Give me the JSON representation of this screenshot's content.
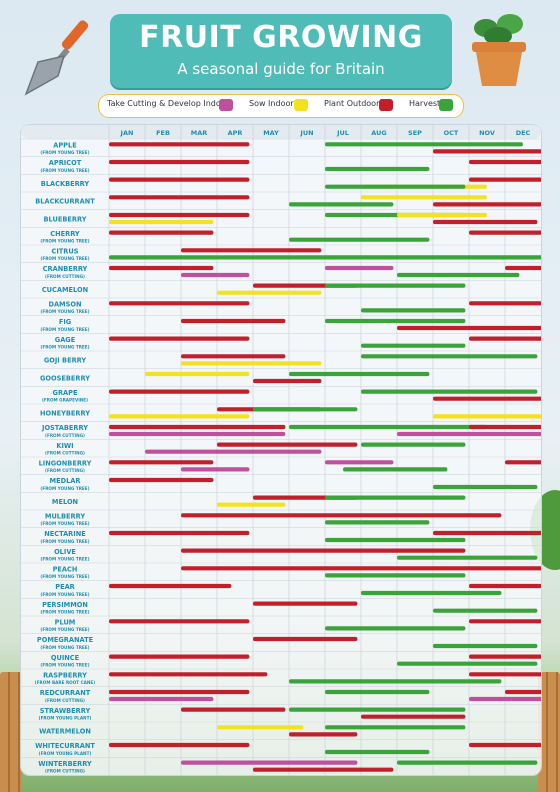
{
  "header": {
    "title": "FRUIT GROWING",
    "subtitle": "A seasonal guide for Britain"
  },
  "legend": [
    {
      "label": "Take Cutting & Develop Indoors",
      "color": "#c0509e"
    },
    {
      "label": "Sow Indoors",
      "color": "#f3e21f"
    },
    {
      "label": "Plant Outdoors",
      "color": "#c21f2a"
    },
    {
      "label": "Harvest",
      "color": "#3aa43a"
    }
  ],
  "chart_data": {
    "type": "table",
    "months": [
      "JAN",
      "FEB",
      "MAR",
      "APR",
      "MAY",
      "JUN",
      "JUL",
      "AUG",
      "SEP",
      "OCT",
      "NOV",
      "DEC"
    ],
    "colors": {
      "cutting": "#c0509e",
      "sow": "#f3e21f",
      "plant": "#c21f2a",
      "harvest": "#3aa43a"
    },
    "rows": [
      {
        "name": "APPLE",
        "sub": "(FROM YOUNG TREE)",
        "bars": [
          {
            "type": "plant",
            "start": 1,
            "end": 3.9
          },
          {
            "type": "plant",
            "start": 10,
            "end": 12.9
          },
          {
            "type": "harvest",
            "start": 7,
            "end": 11.5
          }
        ]
      },
      {
        "name": "APRICOT",
        "sub": "(FROM YOUNG TREE)",
        "bars": [
          {
            "type": "plant",
            "start": 1,
            "end": 3.9
          },
          {
            "type": "harvest",
            "start": 7,
            "end": 8.9
          },
          {
            "type": "plant",
            "start": 11,
            "end": 12.9
          }
        ]
      },
      {
        "name": "BLACKBERRY",
        "sub": "",
        "bars": [
          {
            "type": "plant",
            "start": 1,
            "end": 3.9
          },
          {
            "type": "sow",
            "start": 8,
            "end": 10.5
          },
          {
            "type": "plant",
            "start": 11,
            "end": 12.9
          },
          {
            "type": "harvest",
            "start": 7,
            "end": 9.9
          }
        ]
      },
      {
        "name": "BLACKCURRANT",
        "sub": "",
        "bars": [
          {
            "type": "plant",
            "start": 1,
            "end": 3.9
          },
          {
            "type": "harvest",
            "start": 6,
            "end": 7.9
          },
          {
            "type": "sow",
            "start": 8,
            "end": 10.5
          },
          {
            "type": "plant",
            "start": 10,
            "end": 12.9
          }
        ]
      },
      {
        "name": "BLUEBERRY",
        "sub": "",
        "bars": [
          {
            "type": "plant",
            "start": 1,
            "end": 3.9
          },
          {
            "type": "sow",
            "start": 1,
            "end": 2.9
          },
          {
            "type": "harvest",
            "start": 7,
            "end": 9.9
          },
          {
            "type": "plant",
            "start": 10,
            "end": 11.9
          },
          {
            "type": "sow",
            "start": 9,
            "end": 10.5
          }
        ]
      },
      {
        "name": "CHERRY",
        "sub": "(FROM YOUNG TREE)",
        "bars": [
          {
            "type": "plant",
            "start": 1,
            "end": 2.9
          },
          {
            "type": "harvest",
            "start": 6,
            "end": 8.9
          },
          {
            "type": "plant",
            "start": 11,
            "end": 12.9
          }
        ]
      },
      {
        "name": "CITRUS",
        "sub": "(FROM YOUNG TREE)",
        "bars": [
          {
            "type": "plant",
            "start": 3,
            "end": 5.9
          },
          {
            "type": "harvest",
            "start": 1,
            "end": 12.9
          }
        ]
      },
      {
        "name": "CRANBERRY",
        "sub": "(FROM CUTTING)",
        "bars": [
          {
            "type": "plant",
            "start": 1,
            "end": 2.9
          },
          {
            "type": "cutting",
            "start": 3,
            "end": 3.9
          },
          {
            "type": "cutting",
            "start": 7,
            "end": 7.9
          },
          {
            "type": "harvest",
            "start": 9,
            "end": 11.4
          },
          {
            "type": "plant",
            "start": 12,
            "end": 12.9
          }
        ]
      },
      {
        "name": "CUCAMELON",
        "sub": "",
        "bars": [
          {
            "type": "plant",
            "start": 5,
            "end": 6.9
          },
          {
            "type": "sow",
            "start": 4,
            "end": 5.9
          },
          {
            "type": "harvest",
            "start": 7,
            "end": 9.9
          }
        ]
      },
      {
        "name": "DAMSON",
        "sub": "(FROM YOUNG TREE)",
        "bars": [
          {
            "type": "plant",
            "start": 1,
            "end": 3.9
          },
          {
            "type": "harvest",
            "start": 8,
            "end": 9.9
          },
          {
            "type": "plant",
            "start": 11,
            "end": 12.9
          }
        ]
      },
      {
        "name": "FIG",
        "sub": "(FROM YOUNG TREE)",
        "bars": [
          {
            "type": "plant",
            "start": 3,
            "end": 4.9
          },
          {
            "type": "plant",
            "start": 9,
            "end": 12.9
          },
          {
            "type": "harvest",
            "start": 7,
            "end": 9.9
          }
        ]
      },
      {
        "name": "GAGE",
        "sub": "(FROM YOUNG TREE)",
        "bars": [
          {
            "type": "plant",
            "start": 1,
            "end": 3.9
          },
          {
            "type": "harvest",
            "start": 8,
            "end": 9.9
          },
          {
            "type": "plant",
            "start": 11,
            "end": 12.9
          }
        ]
      },
      {
        "name": "GOJI BERRY",
        "sub": "",
        "bars": [
          {
            "type": "plant",
            "start": 3,
            "end": 4.9
          },
          {
            "type": "sow",
            "start": 3,
            "end": 5.9
          },
          {
            "type": "harvest",
            "start": 8,
            "end": 11.9
          }
        ]
      },
      {
        "name": "GOOSEBERRY",
        "sub": "",
        "bars": [
          {
            "type": "sow",
            "start": 2,
            "end": 3.9
          },
          {
            "type": "plant",
            "start": 5,
            "end": 5.9
          },
          {
            "type": "harvest",
            "start": 6,
            "end": 8.9
          }
        ]
      },
      {
        "name": "GRAPE",
        "sub": "(FROM GRAPEVINE)",
        "bars": [
          {
            "type": "plant",
            "start": 1,
            "end": 3.9
          },
          {
            "type": "plant",
            "start": 10,
            "end": 12.9
          },
          {
            "type": "harvest",
            "start": 8,
            "end": 11.9
          }
        ]
      },
      {
        "name": "HONEYBERRY",
        "sub": "",
        "bars": [
          {
            "type": "plant",
            "start": 4,
            "end": 5.9
          },
          {
            "type": "sow",
            "start": 1,
            "end": 3.9
          },
          {
            "type": "harvest",
            "start": 5,
            "end": 6.9
          },
          {
            "type": "sow",
            "start": 10,
            "end": 12.9
          }
        ]
      },
      {
        "name": "JOSTABERRY",
        "sub": "(FROM CUTTING)",
        "bars": [
          {
            "type": "plant",
            "start": 1,
            "end": 4.9
          },
          {
            "type": "cutting",
            "start": 1,
            "end": 4.9
          },
          {
            "type": "harvest",
            "start": 6,
            "end": 10.5
          },
          {
            "type": "cutting",
            "start": 9,
            "end": 12.9
          },
          {
            "type": "plant",
            "start": 11,
            "end": 12.9
          }
        ]
      },
      {
        "name": "KIWI",
        "sub": "(FROM CUTTING)",
        "bars": [
          {
            "type": "plant",
            "start": 4,
            "end": 6.9
          },
          {
            "type": "cutting",
            "start": 2,
            "end": 5.9
          },
          {
            "type": "harvest",
            "start": 8,
            "end": 9.9
          }
        ]
      },
      {
        "name": "LINGONBERRY",
        "sub": "(FROM CUTTING)",
        "bars": [
          {
            "type": "plant",
            "start": 1,
            "end": 2.9
          },
          {
            "type": "cutting",
            "start": 3,
            "end": 3.9
          },
          {
            "type": "cutting",
            "start": 7,
            "end": 7.9
          },
          {
            "type": "harvest",
            "start": 7.5,
            "end": 9.4
          },
          {
            "type": "plant",
            "start": 12,
            "end": 12.9
          }
        ]
      },
      {
        "name": "MEDLAR",
        "sub": "(FROM YOUNG TREE)",
        "bars": [
          {
            "type": "plant",
            "start": 1,
            "end": 2.9
          },
          {
            "type": "harvest",
            "start": 10,
            "end": 11.9
          }
        ]
      },
      {
        "name": "MELON",
        "sub": "",
        "bars": [
          {
            "type": "plant",
            "start": 5,
            "end": 6.9
          },
          {
            "type": "sow",
            "start": 4,
            "end": 4.9
          },
          {
            "type": "harvest",
            "start": 7,
            "end": 9.9
          }
        ]
      },
      {
        "name": "MULBERRY",
        "sub": "(FROM YOUNG TREE)",
        "bars": [
          {
            "type": "plant",
            "start": 3,
            "end": 10.9
          },
          {
            "type": "harvest",
            "start": 7,
            "end": 8.9
          }
        ]
      },
      {
        "name": "NECTARINE",
        "sub": "(FROM YOUNG TREE)",
        "bars": [
          {
            "type": "plant",
            "start": 1,
            "end": 3.9
          },
          {
            "type": "harvest",
            "start": 7,
            "end": 9.9
          },
          {
            "type": "plant",
            "start": 10,
            "end": 12.9
          }
        ]
      },
      {
        "name": "OLIVE",
        "sub": "(FROM YOUNG TREE)",
        "bars": [
          {
            "type": "plant",
            "start": 3,
            "end": 9.9
          },
          {
            "type": "harvest",
            "start": 9,
            "end": 11.9
          }
        ]
      },
      {
        "name": "PEACH",
        "sub": "(FROM YOUNG TREE)",
        "bars": [
          {
            "type": "plant",
            "start": 3,
            "end": 12.9
          },
          {
            "type": "harvest",
            "start": 7,
            "end": 9.9
          }
        ]
      },
      {
        "name": "PEAR",
        "sub": "(FROM YOUNG TREE)",
        "bars": [
          {
            "type": "plant",
            "start": 1,
            "end": 3.4
          },
          {
            "type": "harvest",
            "start": 8,
            "end": 10.9
          },
          {
            "type": "plant",
            "start": 11,
            "end": 12.9
          }
        ]
      },
      {
        "name": "PERSIMMON",
        "sub": "(FROM YOUNG TREE)",
        "bars": [
          {
            "type": "plant",
            "start": 5,
            "end": 6.9
          },
          {
            "type": "harvest",
            "start": 10,
            "end": 11.9
          }
        ]
      },
      {
        "name": "PLUM",
        "sub": "(FROM YOUNG TREE)",
        "bars": [
          {
            "type": "plant",
            "start": 1,
            "end": 3.9
          },
          {
            "type": "harvest",
            "start": 7,
            "end": 9.9
          },
          {
            "type": "plant",
            "start": 11,
            "end": 12.9
          }
        ]
      },
      {
        "name": "POMEGRANATE",
        "sub": "(FROM YOUNG TREE)",
        "bars": [
          {
            "type": "plant",
            "start": 5,
            "end": 6.9
          },
          {
            "type": "harvest",
            "start": 10,
            "end": 11.9
          }
        ]
      },
      {
        "name": "QUINCE",
        "sub": "(FROM YOUNG TREE)",
        "bars": [
          {
            "type": "plant",
            "start": 1,
            "end": 3.9
          },
          {
            "type": "harvest",
            "start": 9,
            "end": 11.9
          },
          {
            "type": "plant",
            "start": 11,
            "end": 12.9
          }
        ]
      },
      {
        "name": "RASPBERRY",
        "sub": "(FROM BARE ROOT CANE)",
        "bars": [
          {
            "type": "plant",
            "start": 1,
            "end": 4.4
          },
          {
            "type": "harvest",
            "start": 6,
            "end": 10.9
          },
          {
            "type": "plant",
            "start": 11,
            "end": 12.9
          }
        ]
      },
      {
        "name": "REDCURRANT",
        "sub": "(FROM CUTTING)",
        "bars": [
          {
            "type": "plant",
            "start": 1,
            "end": 3.9
          },
          {
            "type": "cutting",
            "start": 1,
            "end": 2.9
          },
          {
            "type": "harvest",
            "start": 7,
            "end": 8.9
          },
          {
            "type": "cutting",
            "start": 11,
            "end": 12.9
          },
          {
            "type": "plant",
            "start": 12,
            "end": 12.9
          }
        ]
      },
      {
        "name": "STRAWBERRY",
        "sub": "(FROM YOUNG PLANT)",
        "bars": [
          {
            "type": "plant",
            "start": 3,
            "end": 4.9
          },
          {
            "type": "plant",
            "start": 8,
            "end": 9.9
          },
          {
            "type": "harvest",
            "start": 6,
            "end": 9.9
          }
        ]
      },
      {
        "name": "WATERMELON",
        "sub": "",
        "bars": [
          {
            "type": "sow",
            "start": 4,
            "end": 5.4
          },
          {
            "type": "plant",
            "start": 6,
            "end": 6.9
          },
          {
            "type": "harvest",
            "start": 7,
            "end": 9.9
          }
        ]
      },
      {
        "name": "WHITECURRANT",
        "sub": "(FROM YOUNG PLANT)",
        "bars": [
          {
            "type": "plant",
            "start": 1,
            "end": 3.9
          },
          {
            "type": "harvest",
            "start": 7,
            "end": 8.9
          },
          {
            "type": "plant",
            "start": 11,
            "end": 12.9
          }
        ]
      },
      {
        "name": "WINTERBERRY",
        "sub": "(FROM CUTTING)",
        "bars": [
          {
            "type": "cutting",
            "start": 3,
            "end": 6.9
          },
          {
            "type": "plant",
            "start": 5,
            "end": 7.9
          },
          {
            "type": "harvest",
            "start": 9,
            "end": 11.9
          }
        ]
      }
    ]
  }
}
